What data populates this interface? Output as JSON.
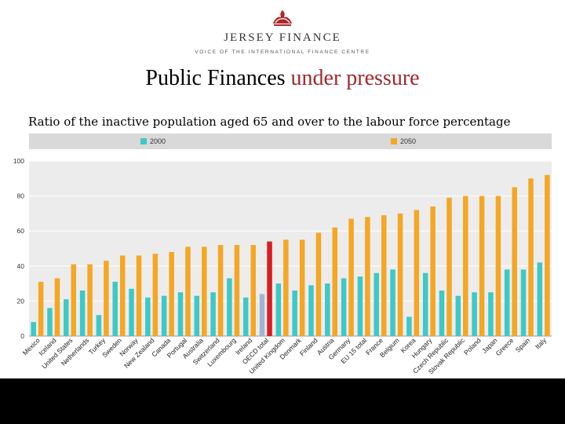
{
  "header": {
    "brand": "JERSEY FINANCE",
    "tagline": "VOICE OF THE INTERNATIONAL FINANCE CENTRE"
  },
  "slide": {
    "title_main": "Public Finances",
    "title_accent": "under  pressure",
    "subtitle": "Ratio of the inactive population aged 65 and over to the labour force percentage"
  },
  "colors": {
    "series_2000": "#3ec8c8",
    "series_2050": "#f5a623",
    "highlight": "#d81e1e",
    "highlight_2000": "#9fb7d4",
    "accent_title": "#a0282c",
    "legend_band": "#d9d9d9",
    "plot_bg": "#ececec"
  },
  "chart_data": {
    "type": "bar",
    "categories": [
      "Mexico",
      "Iceland",
      "United States",
      "Netherlands",
      "Turkey",
      "Sweden",
      "Norway",
      "New Zealand",
      "Canada",
      "Portugal",
      "Australia",
      "Switzerland",
      "Luxembourg",
      "Ireland",
      "OECD total",
      "United Kingdom",
      "Denmark",
      "Finland",
      "Austria",
      "Germany",
      "EU 15 total",
      "France",
      "Belgium",
      "Korea",
      "Hungary",
      "Czech Republic",
      "Slovak Republic",
      "Poland",
      "Japan",
      "Greece",
      "Spain",
      "Italy"
    ],
    "series": [
      {
        "name": "2000",
        "values": [
          8,
          16,
          21,
          26,
          12,
          31,
          27,
          22,
          23,
          25,
          23,
          25,
          33,
          22,
          24,
          30,
          26,
          29,
          30,
          33,
          34,
          36,
          38,
          11,
          36,
          26,
          23,
          25,
          25,
          38,
          38,
          42
        ]
      },
      {
        "name": "2050",
        "values": [
          31,
          33,
          41,
          41,
          43,
          46,
          46,
          47,
          48,
          51,
          51,
          52,
          52,
          52,
          54,
          55,
          55,
          59,
          62,
          67,
          68,
          69,
          70,
          72,
          74,
          79,
          80,
          80,
          80,
          85,
          90,
          92
        ]
      }
    ],
    "highlighted_category": "OECD total",
    "ylim": [
      0,
      100
    ],
    "yticks": [
      0,
      20,
      40,
      60,
      80,
      100
    ],
    "legend_position": "top",
    "grid": true
  }
}
